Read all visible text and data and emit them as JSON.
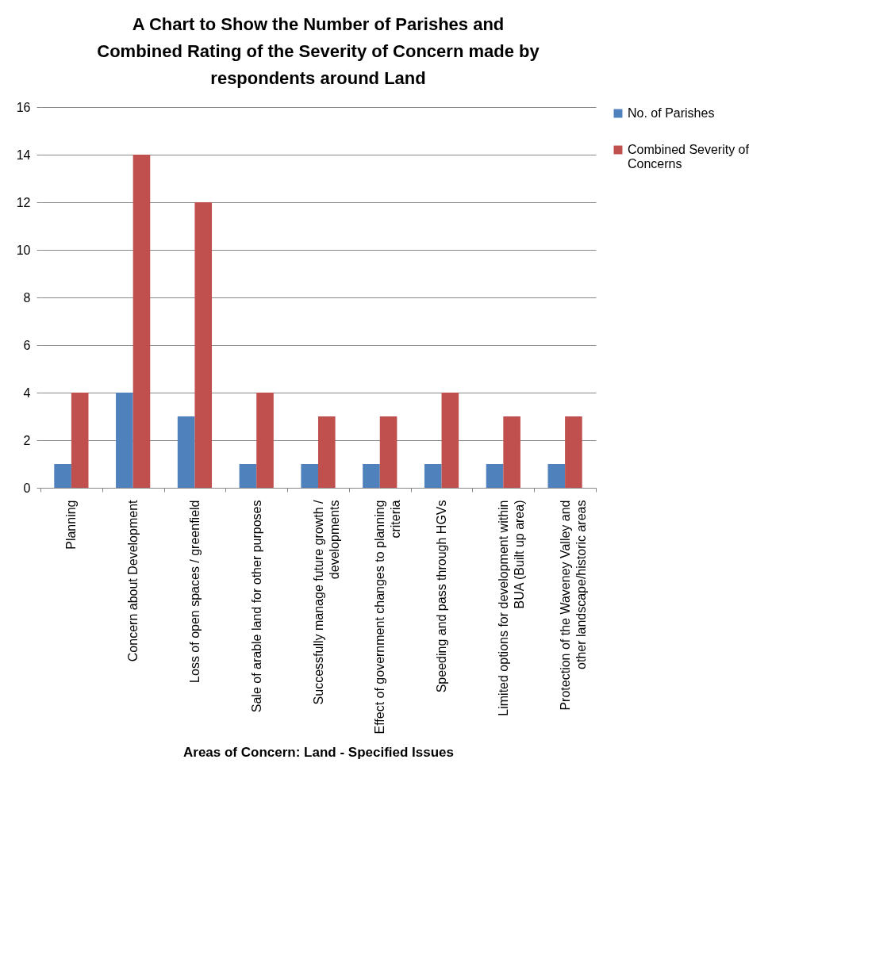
{
  "chart_data": {
    "type": "bar",
    "title": "A Chart to Show the Number of Parishes and Combined Rating of the Severity of Concern made by respondents around Land",
    "xlabel": "Areas of Concern: Land - Specified Issues",
    "categories": [
      "Planning",
      "Concern about Development",
      "Loss of open spaces / greenfield",
      "Sale of arable land for other purposes",
      "Successfully manage future growth / developments",
      "Effect of government changes to planning criteria",
      "Speeding and pass through HGVs",
      "Limited options for development within BUA (Built up area)",
      "Protection of the Waveney Valley and other landscape/historic areas"
    ],
    "series": [
      {
        "name": "No. of Parishes",
        "color": "#4f81bd",
        "values": [
          1,
          4,
          3,
          1,
          1,
          1,
          1,
          1,
          1
        ]
      },
      {
        "name": "Combined Severity of Concerns",
        "color": "#c0504d",
        "values": [
          4,
          14,
          12,
          4,
          3,
          3,
          4,
          3,
          3
        ]
      }
    ],
    "ylim": [
      0,
      16
    ],
    "yticks": [
      0,
      2,
      4,
      6,
      8,
      10,
      12,
      14,
      16
    ],
    "grid": "y",
    "legend": "right"
  }
}
